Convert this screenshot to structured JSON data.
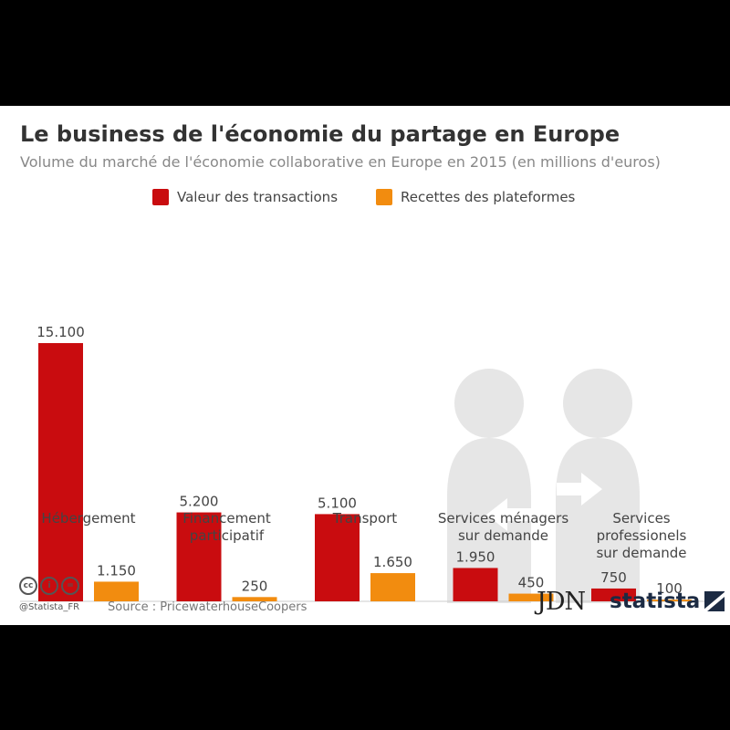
{
  "title": "Le business de l'économie du partage en Europe",
  "subtitle": "Volume du marché de l'économie collaborative en Europe en 2015 (en millions d'euros)",
  "colors": {
    "transactions": "#c90c0f",
    "platforms": "#f28c0f"
  },
  "chart_data": {
    "type": "bar",
    "categories": [
      [
        "Hébergement"
      ],
      [
        "Financement",
        "participatif"
      ],
      [
        "Transport"
      ],
      [
        "Services ménagers",
        "sur demande"
      ],
      [
        "Services",
        "professionels",
        "sur demande"
      ]
    ],
    "series": [
      {
        "name": "Valeur des transactions",
        "values": [
          15100,
          5200,
          5100,
          1950,
          750
        ],
        "labels": [
          "15.100",
          "5.200",
          "5.100",
          "1.950",
          "750"
        ]
      },
      {
        "name": "Recettes des plateformes",
        "values": [
          1150,
          250,
          1650,
          450,
          100
        ],
        "labels": [
          "1.150",
          "250",
          "1.650",
          "450",
          "100"
        ]
      }
    ],
    "legend_position": "top",
    "grid": false
  },
  "footer": {
    "cc_icons": [
      "cc",
      "by",
      "nd"
    ],
    "cc_labels": [
      "cc",
      "i",
      "="
    ],
    "handle": "@Statista_FR",
    "source": "Source : PricewaterhouseCoopers",
    "logo_jdn": "JDN",
    "logo_statista": "statista"
  }
}
